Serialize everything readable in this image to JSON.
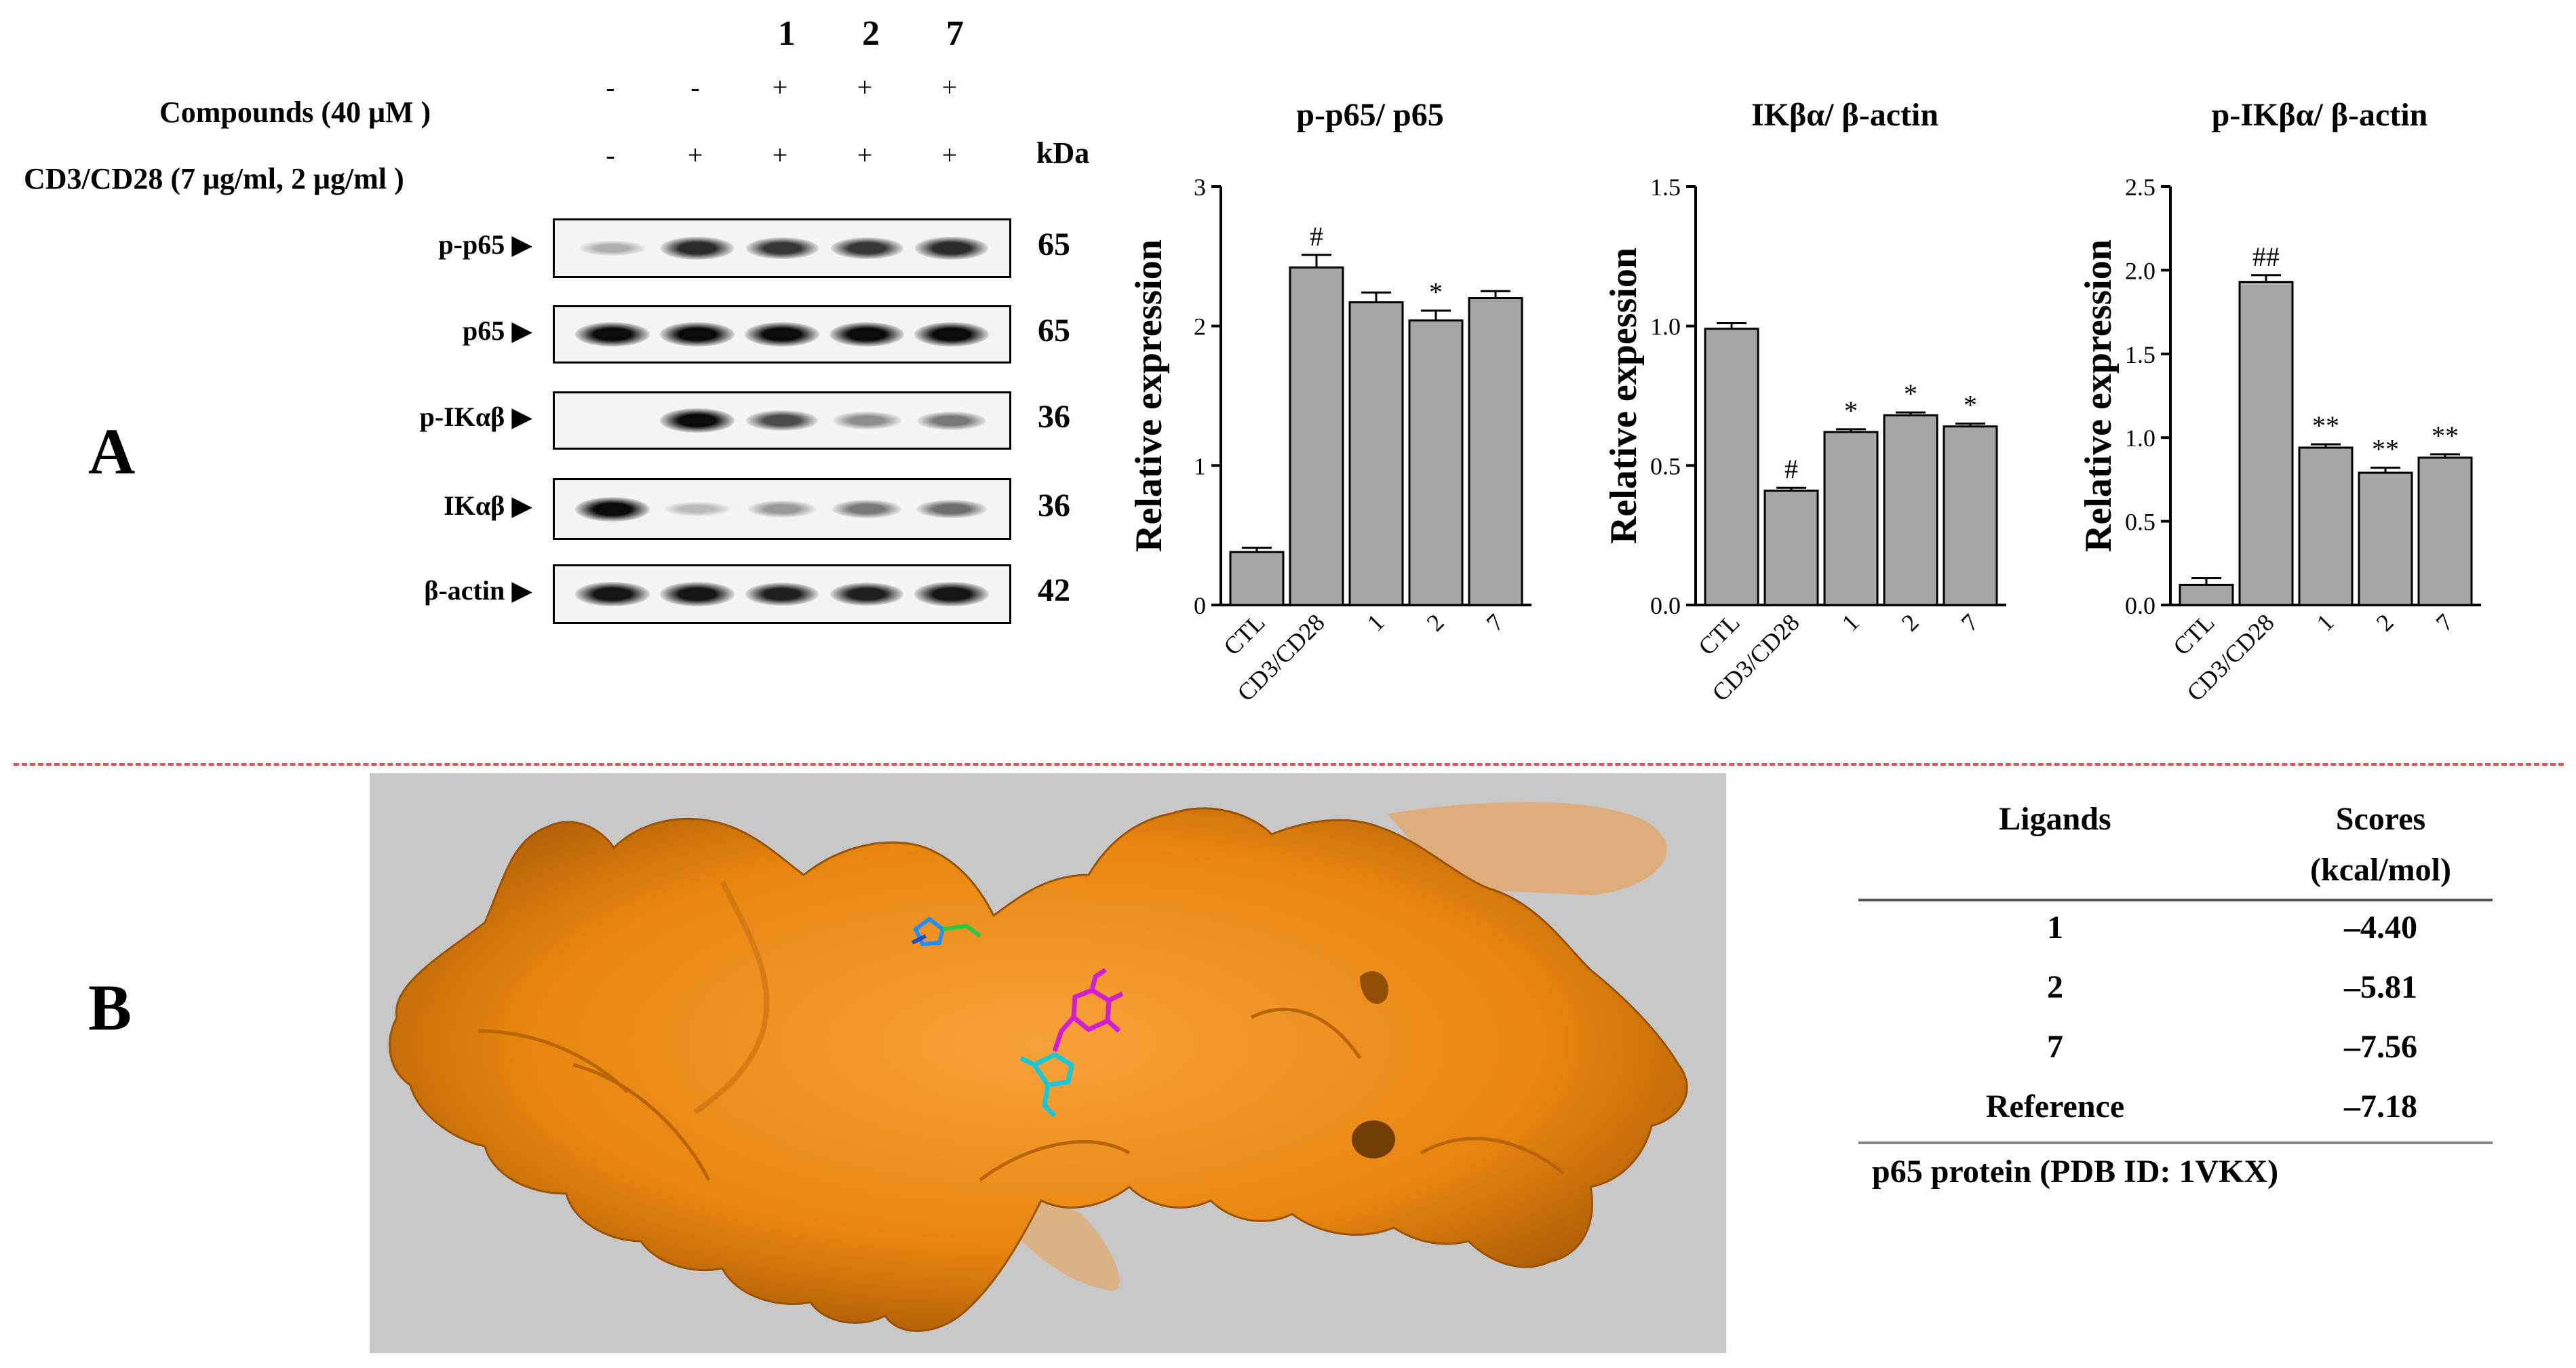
{
  "panels": {
    "a": "A",
    "b": "B"
  },
  "western_blot": {
    "lane_numbers": [
      "1",
      "2",
      "7"
    ],
    "compounds_label": "Compounds (40 μM )",
    "cd_label": "CD3/CD28 (7 μg/ml, 2 μg/ml )",
    "kda_label": "kDa",
    "compounds_signs": [
      "-",
      "-",
      "+",
      "+",
      "+"
    ],
    "cd_signs": [
      "-",
      "+",
      "+",
      "+",
      "+"
    ],
    "rows": [
      {
        "label": "p-p65 ▶",
        "kda": "65",
        "intensity": [
          0.25,
          0.85,
          0.8,
          0.8,
          0.85
        ]
      },
      {
        "label": "p65 ▶",
        "kda": "65",
        "intensity": [
          1.0,
          1.0,
          1.0,
          1.0,
          1.0
        ]
      },
      {
        "label": "p-IKαβ ▶",
        "kda": "36",
        "intensity": [
          0.0,
          1.0,
          0.7,
          0.4,
          0.5
        ]
      },
      {
        "label": "IKαβ ▶",
        "kda": "36",
        "intensity": [
          1.0,
          0.2,
          0.35,
          0.5,
          0.55
        ]
      },
      {
        "label": "β-actin ▶",
        "kda": "42",
        "intensity": [
          0.95,
          0.95,
          0.9,
          0.9,
          0.95
        ]
      }
    ]
  },
  "chart_data": [
    {
      "type": "bar",
      "title": "p-p65/ p65",
      "ylabel": "Relative expression",
      "categories": [
        "CTL",
        "CD3/CD28",
        "1",
        "2",
        "7"
      ],
      "values": [
        0.38,
        2.42,
        2.17,
        2.04,
        2.2
      ],
      "errors": [
        0.03,
        0.09,
        0.07,
        0.07,
        0.05
      ],
      "annotations": [
        "",
        "#",
        "",
        "*",
        ""
      ],
      "ylim": [
        0,
        3
      ],
      "yticks": [
        "0",
        "1",
        "2",
        "3"
      ],
      "ytick_values": [
        0,
        1,
        2,
        3
      ]
    },
    {
      "type": "bar",
      "title": "IKβα/ β-actin",
      "ylabel": "Relative expession",
      "categories": [
        "CTL",
        "CD3/CD28",
        "1",
        "2",
        "7"
      ],
      "values": [
        0.99,
        0.41,
        0.62,
        0.68,
        0.64
      ],
      "errors": [
        0.02,
        0.01,
        0.01,
        0.01,
        0.01
      ],
      "annotations": [
        "",
        "#",
        "*",
        "*",
        "*"
      ],
      "ylim": [
        0,
        1.5
      ],
      "yticks": [
        "0.0",
        "0.5",
        "1.0",
        "1.5"
      ],
      "ytick_values": [
        0,
        0.5,
        1.0,
        1.5
      ]
    },
    {
      "type": "bar",
      "title": "p-IKβα/ β-actin",
      "ylabel": "Relative expression",
      "categories": [
        "CTL",
        "CD3/CD28",
        "1",
        "2",
        "7"
      ],
      "values": [
        0.12,
        1.93,
        0.94,
        0.79,
        0.88
      ],
      "errors": [
        0.04,
        0.04,
        0.02,
        0.03,
        0.02
      ],
      "annotations": [
        "",
        "##",
        "**",
        "**",
        "**"
      ],
      "ylim": [
        0,
        2.5
      ],
      "yticks": [
        "0.0",
        "0.5",
        "1.0",
        "1.5",
        "2.0",
        "2.5"
      ],
      "ytick_values": [
        0,
        0.5,
        1.0,
        1.5,
        2.0,
        2.5
      ]
    }
  ],
  "docking_table": {
    "headers": [
      "Ligands",
      "Scores",
      "(kcal/mol)"
    ],
    "rows": [
      {
        "ligand": "1",
        "score": "–4.40"
      },
      {
        "ligand": "2",
        "score": "–5.81"
      },
      {
        "ligand": "7",
        "score": "–7.56"
      },
      {
        "ligand": "Reference",
        "score": "–7.18"
      }
    ],
    "caption": "p65 protein (PDB ID: 1VKX)"
  },
  "colors": {
    "bar": "#a6a6a6",
    "protein": "#e8860f",
    "background_box": "#c8c8c8",
    "separator": "#d9534f"
  }
}
